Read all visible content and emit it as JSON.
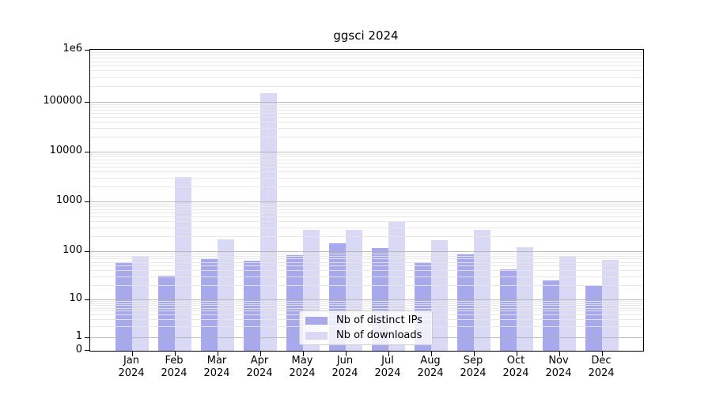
{
  "title": "ggsci 2024",
  "chart_data": {
    "type": "bar",
    "title": "ggsci 2024",
    "x_tick_year": "2024",
    "categories": [
      "Jan",
      "Feb",
      "Mar",
      "Apr",
      "May",
      "Jun",
      "Jul",
      "Aug",
      "Sep",
      "Oct",
      "Nov",
      "Dec"
    ],
    "series": [
      {
        "name": "Nb of distinct IPs",
        "color": "#a8a8ec",
        "values": [
          58,
          31,
          71,
          63,
          83,
          146,
          116,
          60,
          87,
          42,
          25,
          20
        ]
      },
      {
        "name": "Nb of downloads",
        "color": "#d9d9f6",
        "values": [
          79,
          3100,
          170,
          145000,
          265,
          267,
          385,
          168,
          265,
          122,
          77,
          65
        ]
      }
    ],
    "y_axis": {
      "scale": "symlog",
      "ylim": [
        0,
        1000000
      ],
      "ticks": [
        {
          "label": "0",
          "value": 0
        },
        {
          "label": "1",
          "value": 1
        },
        {
          "label": "10",
          "value": 10
        },
        {
          "label": "100",
          "value": 100
        },
        {
          "label": "1000",
          "value": 1000
        },
        {
          "label": "10000",
          "value": 10000
        },
        {
          "label": "100000",
          "value": 100000
        },
        {
          "label": "1e6",
          "value": 1000000
        }
      ]
    },
    "grid": "horizontal major + log minor",
    "legend_position": "lower center"
  },
  "colors": {
    "bar_distinct_ips": "#a8a8ec",
    "bar_downloads": "#d9d9f6",
    "grid_major": "#b0b0b0",
    "grid_minor": "#e6e6e6",
    "spine": "#000000",
    "background": "#ffffff"
  }
}
